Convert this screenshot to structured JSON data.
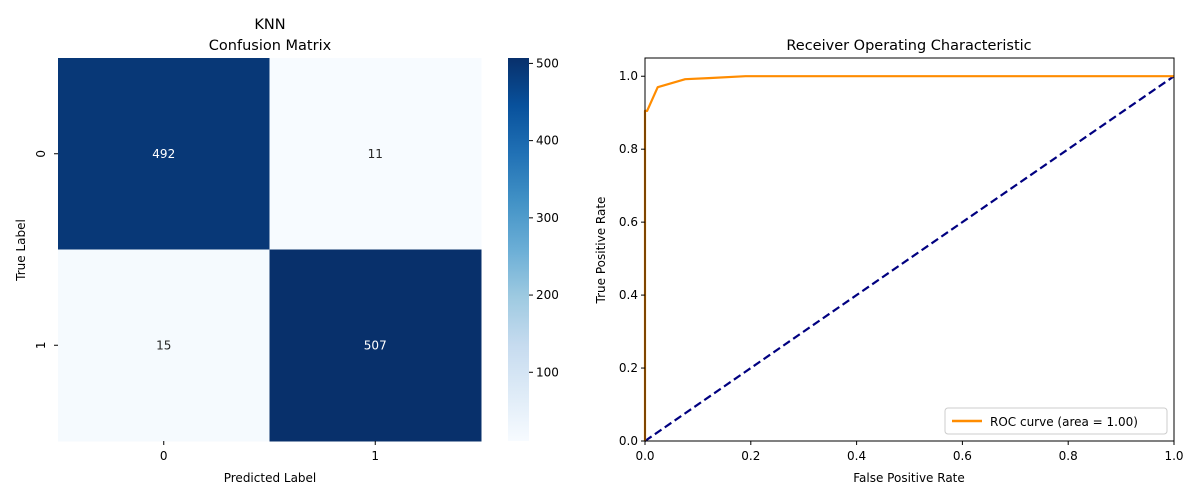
{
  "chart_data": [
    {
      "type": "heatmap",
      "title": "KNN",
      "subtitle": "Confusion Matrix",
      "xlabel": "Predicted Label",
      "ylabel": "True Label",
      "x_categories": [
        "0",
        "1"
      ],
      "y_categories": [
        "0",
        "1"
      ],
      "values": [
        [
          492,
          11
        ],
        [
          15,
          507
        ]
      ],
      "colormap": "Blues",
      "colorbar": {
        "ticks": [
          100,
          200,
          300,
          400,
          500
        ],
        "tick_labels": [
          "100",
          "200",
          "300",
          "400",
          "500"
        ],
        "range": [
          11,
          507
        ]
      },
      "text_colors": {
        "on_dark": "#ffffff",
        "on_light": "#262626"
      }
    },
    {
      "type": "line",
      "title": "Receiver Operating Characteristic",
      "xlabel": "False Positive Rate",
      "ylabel": "True Positive Rate",
      "xlim": [
        0.0,
        1.0
      ],
      "ylim": [
        0.0,
        1.05
      ],
      "x_ticks": [
        0.0,
        0.2,
        0.4,
        0.6,
        0.8,
        1.0
      ],
      "x_tick_labels": [
        "0.0",
        "0.2",
        "0.4",
        "0.6",
        "0.8",
        "1.0"
      ],
      "y_ticks": [
        0.0,
        0.2,
        0.4,
        0.6,
        0.8,
        1.0
      ],
      "y_tick_labels": [
        "0.0",
        "0.2",
        "0.4",
        "0.6",
        "0.8",
        "1.0"
      ],
      "grid": false,
      "legend_position": "lower right",
      "series": [
        {
          "name": "ROC curve (area = 1.00)",
          "color": "#ff8c00",
          "style": "solid",
          "x": [
            0.0,
            0.0,
            0.004,
            0.024,
            0.076,
            0.12,
            0.19,
            0.3,
            1.0
          ],
          "y": [
            0.0,
            0.905,
            0.905,
            0.97,
            0.992,
            0.995,
            1.0,
            1.0,
            1.0
          ]
        },
        {
          "color": "#000080",
          "style": "dashed",
          "x": [
            0.0,
            1.0
          ],
          "y": [
            0.0,
            1.0
          ]
        }
      ]
    }
  ]
}
